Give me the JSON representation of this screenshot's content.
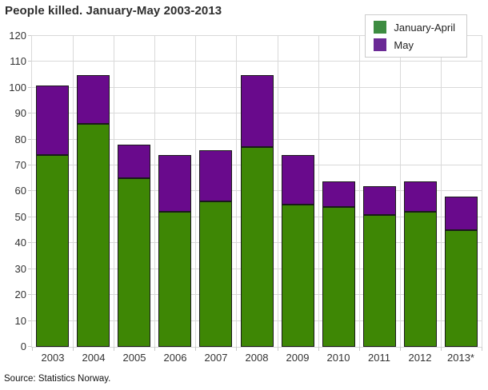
{
  "title": "People killed. January-May 2003-2013",
  "source": "Source: Statistics Norway.",
  "legend": {
    "position": "top-right",
    "items": [
      {
        "label": "January-April",
        "swatch_color": "#3D8C41"
      },
      {
        "label": "May",
        "swatch_color": "#6B2A96"
      }
    ]
  },
  "colors": {
    "january_april_bar": "#3E8705",
    "may_bar": "#690A8C",
    "bar_border": "#1A1A1A",
    "grid": "#D9D9D9",
    "tick": "#C9C9C9",
    "text": "#333333",
    "legend_border": "#CCCCCC"
  },
  "chart_data": {
    "type": "bar",
    "stacked": true,
    "title": "People killed. January-May 2003-2013",
    "xlabel": "",
    "ylabel": "",
    "categories": [
      "2003",
      "2004",
      "2005",
      "2006",
      "2007",
      "2008",
      "2009",
      "2010",
      "2011",
      "2012",
      "2013*"
    ],
    "series": [
      {
        "name": "January-April",
        "color": "#3E8705",
        "values": [
          74,
          86,
          65,
          52,
          56,
          77,
          55,
          54,
          51,
          52,
          45
        ]
      },
      {
        "name": "May",
        "color": "#690A8C",
        "values": [
          27,
          19,
          13,
          22,
          20,
          28,
          19,
          10,
          11,
          12,
          13
        ]
      }
    ],
    "totals": [
      101,
      105,
      78,
      74,
      76,
      105,
      74,
      64,
      62,
      64,
      58
    ],
    "ylim": [
      0,
      120
    ],
    "yticks": [
      0,
      10,
      20,
      30,
      40,
      50,
      60,
      70,
      80,
      90,
      100,
      110,
      120
    ],
    "grid": true,
    "legend_position": "top-right"
  }
}
